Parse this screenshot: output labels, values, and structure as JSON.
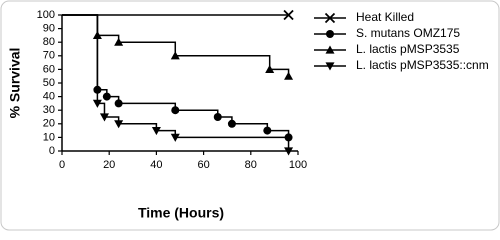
{
  "chart_data": {
    "type": "survival-step",
    "xlabel": "Time (Hours)",
    "ylabel": "% Survival",
    "xlim": [
      0,
      100
    ],
    "xticks": [
      0,
      20,
      40,
      60,
      80,
      100
    ],
    "ylim": [
      0,
      100
    ],
    "yticks": [
      0,
      10,
      20,
      30,
      40,
      50,
      60,
      70,
      80,
      90,
      100
    ],
    "series": [
      {
        "name": "Heat Killed",
        "marker": "x",
        "color": "#000000",
        "x": [
          0,
          96
        ],
        "values": [
          100,
          100
        ]
      },
      {
        "name": "S. mutans OMZ175",
        "marker": "circle",
        "color": "#000000",
        "x": [
          0,
          15,
          19,
          24,
          48,
          66,
          72,
          87,
          96
        ],
        "values": [
          100,
          45,
          40,
          35,
          30,
          25,
          20,
          15,
          10
        ]
      },
      {
        "name": "L. lactis pMSP3535",
        "marker": "triangle-up",
        "color": "#000000",
        "x": [
          0,
          15,
          24,
          48,
          88,
          96
        ],
        "values": [
          100,
          85,
          80,
          70,
          60,
          55
        ]
      },
      {
        "name": "L. lactis pMSP3535::cnm",
        "marker": "triangle-down",
        "color": "#000000",
        "x": [
          0,
          15,
          18,
          24,
          40,
          48,
          96
        ],
        "values": [
          100,
          35,
          25,
          20,
          15,
          10,
          0
        ]
      }
    ]
  }
}
